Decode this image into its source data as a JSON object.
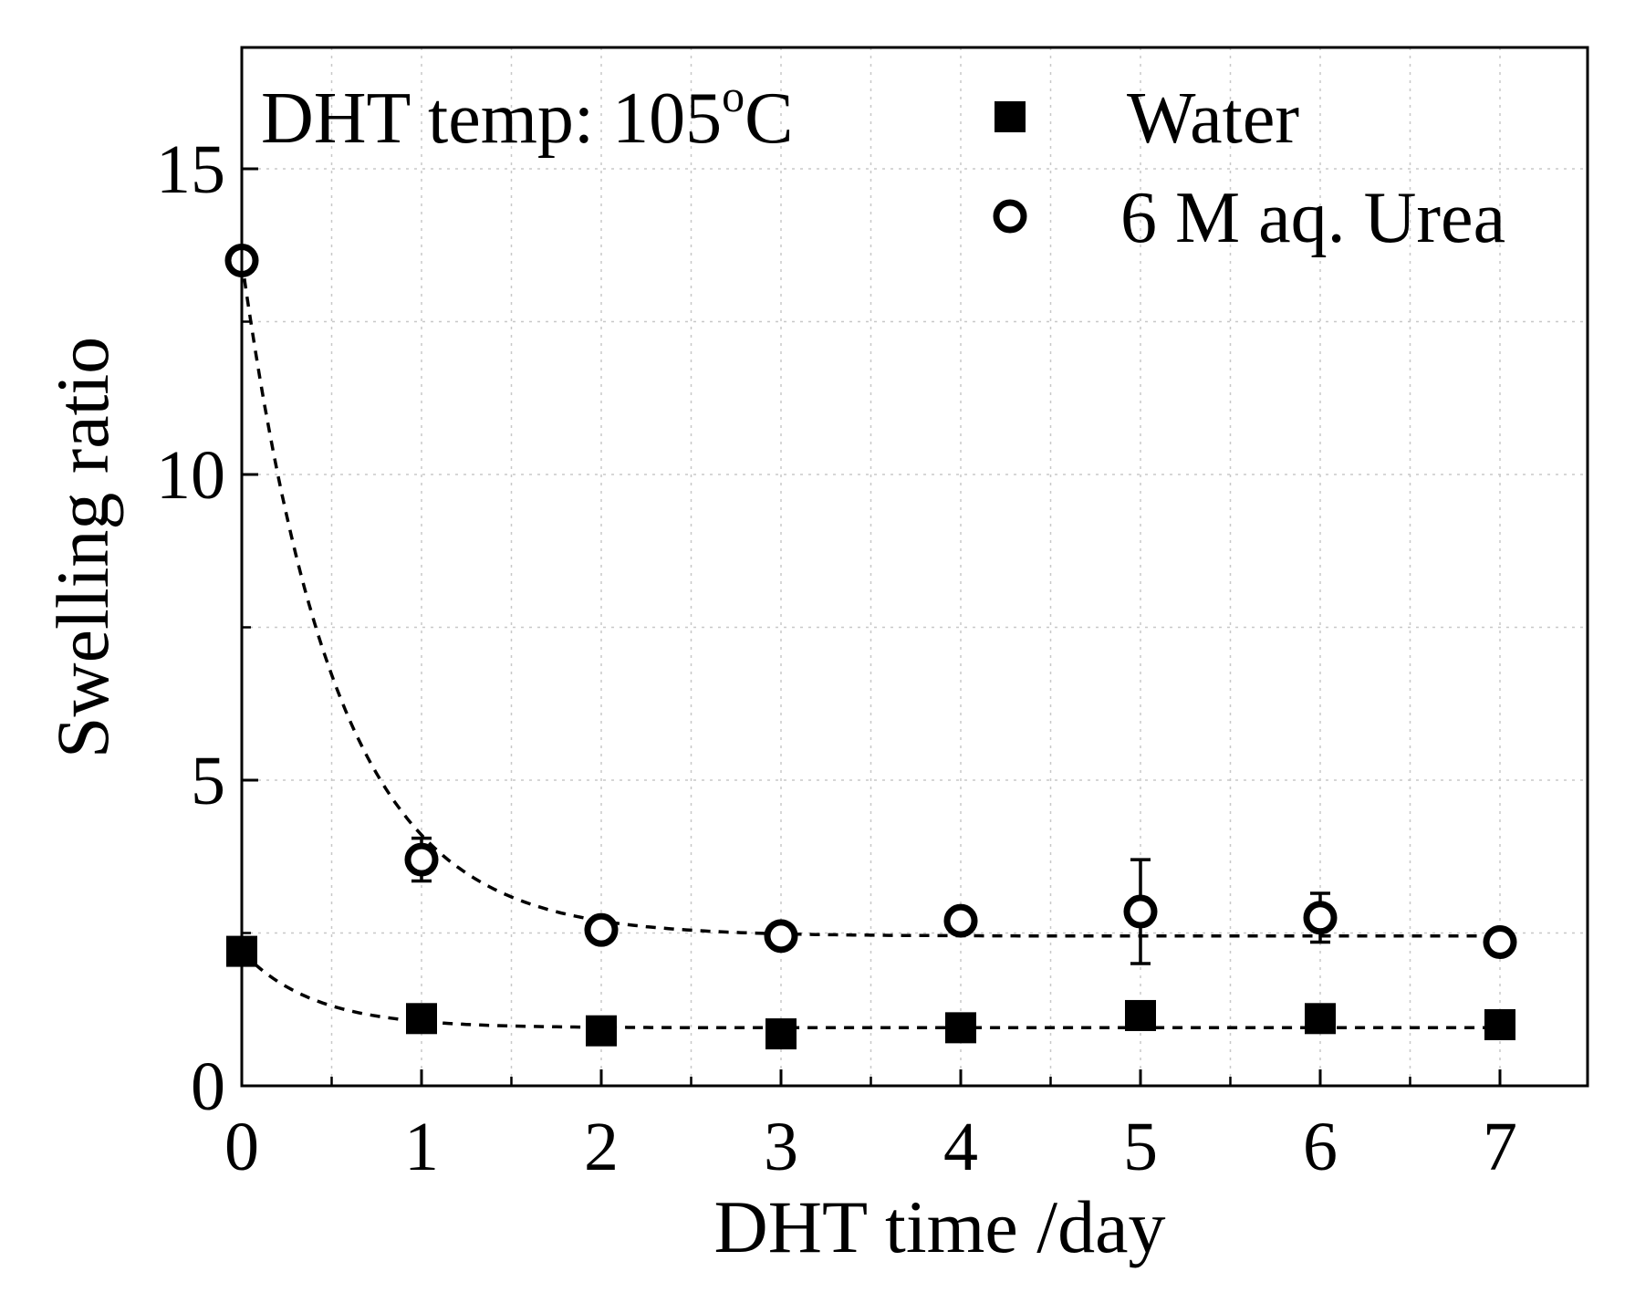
{
  "chart_data": {
    "type": "scatter",
    "title": "",
    "annotation": {
      "prefix": "DHT temp: 105",
      "superscript": "o",
      "suffix": "C"
    },
    "xlabel": "DHT time /day",
    "ylabel": "Swelling ratio",
    "xlim": [
      0,
      7.5
    ],
    "ylim": [
      0,
      17
    ],
    "xticks": [
      0,
      1,
      2,
      3,
      4,
      5,
      6,
      7
    ],
    "xtick_labels": [
      "0",
      "1",
      "2",
      "3",
      "4",
      "5",
      "6",
      "7"
    ],
    "yticks": [
      0,
      5,
      10,
      15
    ],
    "ytick_labels": [
      "0",
      "5",
      "10",
      "15"
    ],
    "grid": true,
    "legend_position": "top-right",
    "series": [
      {
        "name": "Water",
        "marker": "filled-square",
        "x": [
          0,
          1,
          2,
          3,
          4,
          5,
          6,
          7
        ],
        "y": [
          2.2,
          1.1,
          0.9,
          0.85,
          0.95,
          1.15,
          1.1,
          1.0
        ],
        "yerr": [
          0,
          0,
          0,
          0,
          0,
          0,
          0,
          0
        ],
        "fit": {
          "type": "exponential-decay",
          "plateau": 0.95,
          "amplitude": 1.25,
          "rate": 2.5
        }
      },
      {
        "name": "6 M aq. Urea",
        "marker": "open-circle",
        "x": [
          0,
          1,
          2,
          3,
          4,
          5,
          6,
          7
        ],
        "y": [
          13.5,
          3.7,
          2.55,
          2.45,
          2.7,
          2.85,
          2.75,
          2.35
        ],
        "yerr": [
          0,
          0.35,
          0,
          0,
          0,
          0.85,
          0.4,
          0
        ],
        "fit": {
          "type": "exponential-decay",
          "plateau": 2.45,
          "amplitude": 11.05,
          "rate": 1.9
        }
      }
    ]
  }
}
